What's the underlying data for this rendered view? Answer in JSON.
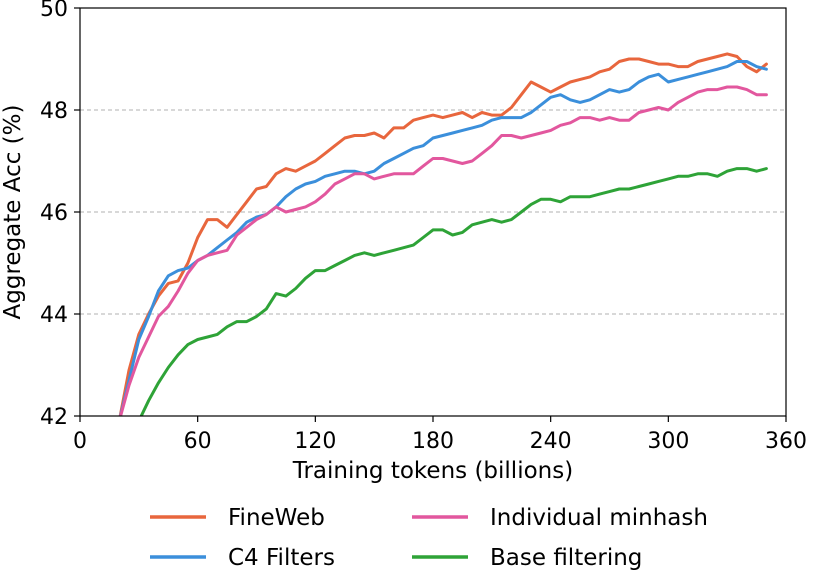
{
  "chart_data": {
    "type": "line",
    "xlabel": "Training tokens (billions)",
    "ylabel": "Aggregate Acc (%)",
    "xlim": [
      0,
      360
    ],
    "ylim": [
      42,
      50
    ],
    "xticks": [
      0,
      60,
      120,
      180,
      240,
      300,
      360
    ],
    "yticks": [
      42,
      44,
      46,
      48,
      50
    ],
    "xtick_labels": [
      "0",
      "60",
      "120",
      "180",
      "240",
      "300",
      "360"
    ],
    "ytick_labels": [
      "42",
      "44",
      "46",
      "48",
      "50"
    ],
    "grid": "horizontal dashed",
    "legend_position": "bottom (below axes, 2 columns)",
    "series": [
      {
        "name": "FineWeb",
        "color": "#E8663D",
        "x": [
          20,
          25,
          30,
          35,
          40,
          45,
          50,
          55,
          60,
          65,
          70,
          75,
          80,
          85,
          90,
          95,
          100,
          105,
          110,
          115,
          120,
          125,
          130,
          135,
          140,
          145,
          150,
          155,
          160,
          165,
          170,
          175,
          180,
          185,
          190,
          195,
          200,
          205,
          210,
          215,
          220,
          225,
          230,
          235,
          240,
          245,
          250,
          255,
          260,
          265,
          270,
          275,
          280,
          285,
          290,
          295,
          300,
          305,
          310,
          315,
          320,
          325,
          330,
          335,
          340,
          345,
          350
        ],
        "y": [
          41.9,
          42.9,
          43.6,
          44.0,
          44.35,
          44.6,
          44.65,
          45.0,
          45.5,
          45.85,
          45.85,
          45.7,
          45.95,
          46.2,
          46.45,
          46.5,
          46.75,
          46.85,
          46.8,
          46.9,
          47.0,
          47.15,
          47.3,
          47.45,
          47.5,
          47.5,
          47.55,
          47.45,
          47.65,
          47.65,
          47.8,
          47.85,
          47.9,
          47.85,
          47.9,
          47.95,
          47.85,
          47.95,
          47.9,
          47.9,
          48.05,
          48.3,
          48.55,
          48.45,
          48.35,
          48.45,
          48.55,
          48.6,
          48.65,
          48.75,
          48.8,
          48.95,
          49.0,
          49.0,
          48.95,
          48.9,
          48.9,
          48.85,
          48.85,
          48.95,
          49.0,
          49.05,
          49.1,
          49.05,
          48.85,
          48.75,
          48.9
        ]
      },
      {
        "name": "C4 Filters",
        "color": "#3B8FDB",
        "x": [
          20,
          25,
          30,
          35,
          40,
          45,
          50,
          55,
          60,
          65,
          70,
          75,
          80,
          85,
          90,
          95,
          100,
          105,
          110,
          115,
          120,
          125,
          130,
          135,
          140,
          145,
          150,
          155,
          160,
          165,
          170,
          175,
          180,
          185,
          190,
          195,
          200,
          205,
          210,
          215,
          220,
          225,
          230,
          235,
          240,
          245,
          250,
          255,
          260,
          265,
          270,
          275,
          280,
          285,
          290,
          295,
          300,
          305,
          310,
          315,
          320,
          325,
          330,
          335,
          340,
          345,
          350
        ],
        "y": [
          41.9,
          42.7,
          43.5,
          43.95,
          44.45,
          44.75,
          44.85,
          44.9,
          45.05,
          45.15,
          45.3,
          45.45,
          45.6,
          45.8,
          45.9,
          45.95,
          46.1,
          46.3,
          46.45,
          46.55,
          46.6,
          46.7,
          46.75,
          46.8,
          46.8,
          46.75,
          46.8,
          46.95,
          47.05,
          47.15,
          47.25,
          47.3,
          47.45,
          47.5,
          47.55,
          47.6,
          47.65,
          47.7,
          47.8,
          47.85,
          47.85,
          47.85,
          47.95,
          48.1,
          48.25,
          48.3,
          48.2,
          48.15,
          48.2,
          48.3,
          48.4,
          48.35,
          48.4,
          48.55,
          48.65,
          48.7,
          48.55,
          48.6,
          48.65,
          48.7,
          48.75,
          48.8,
          48.85,
          48.95,
          48.95,
          48.85,
          48.8
        ]
      },
      {
        "name": "Individual minhash",
        "color": "#E2579E",
        "x": [
          20,
          25,
          30,
          35,
          40,
          45,
          50,
          55,
          60,
          65,
          70,
          75,
          80,
          85,
          90,
          95,
          100,
          105,
          110,
          115,
          120,
          125,
          130,
          135,
          140,
          145,
          150,
          155,
          160,
          165,
          170,
          175,
          180,
          185,
          190,
          195,
          200,
          205,
          210,
          215,
          220,
          225,
          230,
          235,
          240,
          245,
          250,
          255,
          260,
          265,
          270,
          275,
          280,
          285,
          290,
          295,
          300,
          305,
          310,
          315,
          320,
          325,
          330,
          335,
          340,
          345,
          350
        ],
        "y": [
          41.9,
          42.6,
          43.15,
          43.55,
          43.95,
          44.15,
          44.45,
          44.8,
          45.05,
          45.15,
          45.2,
          45.25,
          45.55,
          45.7,
          45.85,
          45.95,
          46.1,
          46.0,
          46.05,
          46.1,
          46.2,
          46.35,
          46.55,
          46.65,
          46.75,
          46.75,
          46.65,
          46.7,
          46.75,
          46.75,
          46.75,
          46.9,
          47.05,
          47.05,
          47.0,
          46.95,
          47.0,
          47.15,
          47.3,
          47.5,
          47.5,
          47.45,
          47.5,
          47.55,
          47.6,
          47.7,
          47.75,
          47.85,
          47.85,
          47.8,
          47.85,
          47.8,
          47.8,
          47.95,
          48.0,
          48.05,
          48.0,
          48.15,
          48.25,
          48.35,
          48.4,
          48.4,
          48.45,
          48.45,
          48.4,
          48.3,
          48.3
        ]
      },
      {
        "name": "Base filtering",
        "color": "#2EA337",
        "x": [
          30,
          35,
          40,
          45,
          50,
          55,
          60,
          65,
          70,
          75,
          80,
          85,
          90,
          95,
          100,
          105,
          110,
          115,
          120,
          125,
          130,
          135,
          140,
          145,
          150,
          155,
          160,
          165,
          170,
          175,
          180,
          185,
          190,
          195,
          200,
          205,
          210,
          215,
          220,
          225,
          230,
          235,
          240,
          245,
          250,
          255,
          260,
          265,
          270,
          275,
          280,
          285,
          290,
          295,
          300,
          305,
          310,
          315,
          320,
          325,
          330,
          335,
          340,
          345,
          350
        ],
        "y": [
          41.9,
          42.3,
          42.65,
          42.95,
          43.2,
          43.4,
          43.5,
          43.55,
          43.6,
          43.75,
          43.85,
          43.85,
          43.95,
          44.1,
          44.4,
          44.35,
          44.5,
          44.7,
          44.85,
          44.85,
          44.95,
          45.05,
          45.15,
          45.2,
          45.15,
          45.2,
          45.25,
          45.3,
          45.35,
          45.5,
          45.65,
          45.65,
          45.55,
          45.6,
          45.75,
          45.8,
          45.85,
          45.8,
          45.85,
          46.0,
          46.15,
          46.25,
          46.25,
          46.2,
          46.3,
          46.3,
          46.3,
          46.35,
          46.4,
          46.45,
          46.45,
          46.5,
          46.55,
          46.6,
          46.65,
          46.7,
          46.7,
          46.75,
          46.75,
          46.7,
          46.8,
          46.85,
          46.85,
          46.8,
          46.85
        ]
      }
    ]
  }
}
